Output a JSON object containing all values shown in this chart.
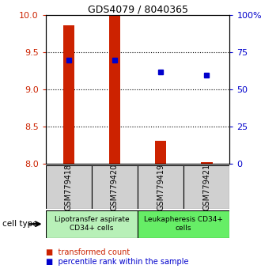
{
  "title": "GDS4079 / 8040365",
  "samples": [
    "GSM779418",
    "GSM779420",
    "GSM779419",
    "GSM779421"
  ],
  "red_values": [
    9.87,
    10.0,
    8.31,
    8.02
  ],
  "blue_values": [
    70.0,
    70.0,
    62.0,
    60.0
  ],
  "ylim_left": [
    8.0,
    10.0
  ],
  "ylim_right": [
    0,
    100
  ],
  "yticks_left": [
    8.0,
    8.5,
    9.0,
    9.5,
    10.0
  ],
  "yticks_right": [
    0,
    25,
    50,
    75,
    100
  ],
  "groups": [
    {
      "label": "Lipotransfer aspirate\nCD34+ cells",
      "samples": [
        0,
        1
      ],
      "color": "#b8f0b8"
    },
    {
      "label": "Leukapheresis CD34+\ncells",
      "samples": [
        2,
        3
      ],
      "color": "#66ee66"
    }
  ],
  "bar_color": "#cc2200",
  "dot_color": "#0000cc",
  "sample_bg_color": "#d0d0d0",
  "bar_base": 8.0,
  "bar_width": 0.25,
  "legend_red_label": "transformed count",
  "legend_blue_label": "percentile rank within the sample",
  "cell_type_label": "cell type",
  "left_tick_color": "#cc2200",
  "right_tick_color": "#0000cc",
  "grid_yticks": [
    8.5,
    9.0,
    9.5
  ]
}
